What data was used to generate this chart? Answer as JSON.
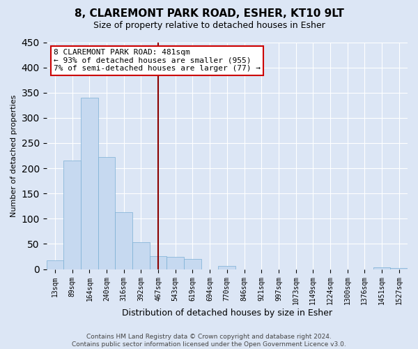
{
  "title": "8, CLAREMONT PARK ROAD, ESHER, KT10 9LT",
  "subtitle": "Size of property relative to detached houses in Esher",
  "xlabel": "Distribution of detached houses by size in Esher",
  "ylabel": "Number of detached properties",
  "bin_labels": [
    "13sqm",
    "89sqm",
    "164sqm",
    "240sqm",
    "316sqm",
    "392sqm",
    "467sqm",
    "543sqm",
    "619sqm",
    "694sqm",
    "770sqm",
    "846sqm",
    "921sqm",
    "997sqm",
    "1073sqm",
    "1149sqm",
    "1224sqm",
    "1300sqm",
    "1376sqm",
    "1451sqm",
    "1527sqm"
  ],
  "bar_heights": [
    18,
    215,
    340,
    222,
    113,
    53,
    26,
    25,
    20,
    0,
    7,
    0,
    0,
    0,
    0,
    0,
    0,
    0,
    0,
    3,
    2
  ],
  "bar_color": "#c6d9f0",
  "bar_edge_color": "#7aafd4",
  "vline_x": 6,
  "vline_color": "#8b0000",
  "annotation_line1": "8 CLAREMONT PARK ROAD: 481sqm",
  "annotation_line2": "← 93% of detached houses are smaller (955)",
  "annotation_line3": "7% of semi-detached houses are larger (77) →",
  "annotation_box_facecolor": "#ffffff",
  "annotation_border_color": "#cc0000",
  "ylim": [
    0,
    450
  ],
  "yticks": [
    0,
    50,
    100,
    150,
    200,
    250,
    300,
    350,
    400,
    450
  ],
  "footer_text": "Contains HM Land Registry data © Crown copyright and database right 2024.\nContains public sector information licensed under the Open Government Licence v3.0.",
  "background_color": "#dce6f5",
  "grid_color": "#ffffff",
  "title_fontsize": 11,
  "subtitle_fontsize": 9,
  "ylabel_fontsize": 8,
  "xlabel_fontsize": 9,
  "tick_fontsize": 7,
  "footer_fontsize": 6.5
}
